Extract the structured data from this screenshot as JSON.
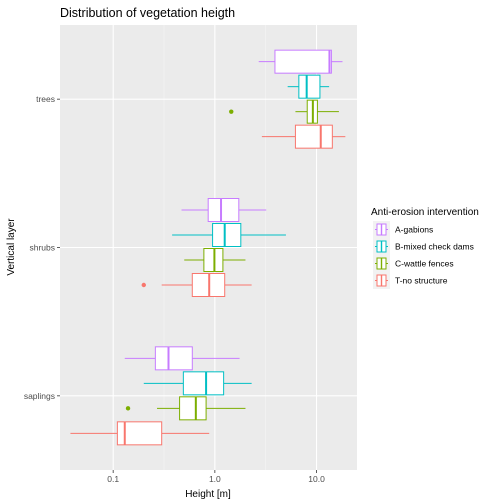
{
  "chart_data": {
    "type": "boxplot",
    "orientation": "horizontal",
    "title": "Distribution of vegetation heigth",
    "xlabel": "Height [m]",
    "ylabel": "Vertical layer",
    "x_scale": "log10",
    "xlim": [
      0.03,
      25
    ],
    "x_ticks": [
      0.1,
      1.0,
      10.0
    ],
    "x_tick_labels": [
      "0.1",
      "1.0",
      "10.0"
    ],
    "categories": [
      "trees",
      "shrubs",
      "saplings"
    ],
    "grid": true,
    "legend_position": "right",
    "legend_title": "Anti-erosion intervention",
    "series": [
      {
        "name": "A-gabions",
        "color": "#C77CFF",
        "boxes": [
          {
            "category": "trees",
            "whisker_low": 2.7,
            "q1": 3.9,
            "median": 13.4,
            "q3": 14.0,
            "whisker_high": 18.0,
            "outliers": []
          },
          {
            "category": "shrubs",
            "whisker_low": 0.47,
            "q1": 0.86,
            "median": 1.15,
            "q3": 1.72,
            "whisker_high": 3.2,
            "outliers": []
          },
          {
            "category": "saplings",
            "whisker_low": 0.13,
            "q1": 0.26,
            "median": 0.35,
            "q3": 0.6,
            "whisker_high": 1.75,
            "outliers": []
          }
        ]
      },
      {
        "name": "B-mixed check dams",
        "color": "#00BFC4",
        "boxes": [
          {
            "category": "trees",
            "whisker_low": 5.2,
            "q1": 6.7,
            "median": 8.0,
            "q3": 10.8,
            "whisker_high": 13.3,
            "outliers": []
          },
          {
            "category": "shrubs",
            "whisker_low": 0.38,
            "q1": 0.95,
            "median": 1.25,
            "q3": 1.8,
            "whisker_high": 5.0,
            "outliers": []
          },
          {
            "category": "saplings",
            "whisker_low": 0.2,
            "q1": 0.49,
            "median": 0.82,
            "q3": 1.22,
            "whisker_high": 2.3,
            "outliers": []
          }
        ]
      },
      {
        "name": "C-wattle fences",
        "color": "#7CAE00",
        "boxes": [
          {
            "category": "trees",
            "whisker_low": 6.2,
            "q1": 8.1,
            "median": 9.2,
            "q3": 10.2,
            "whisker_high": 16.6,
            "outliers": [
              1.45
            ]
          },
          {
            "category": "shrubs",
            "whisker_low": 0.5,
            "q1": 0.78,
            "median": 0.99,
            "q3": 1.2,
            "whisker_high": 2.0,
            "outliers": []
          },
          {
            "category": "saplings",
            "whisker_low": 0.27,
            "q1": 0.45,
            "median": 0.65,
            "q3": 0.82,
            "whisker_high": 2.0,
            "outliers": [
              0.14
            ]
          }
        ]
      },
      {
        "name": "T-no structure",
        "color": "#F8766D",
        "boxes": [
          {
            "category": "trees",
            "whisker_low": 2.9,
            "q1": 6.2,
            "median": 11.0,
            "q3": 14.3,
            "whisker_high": 19.2,
            "outliers": []
          },
          {
            "category": "shrubs",
            "whisker_low": 0.3,
            "q1": 0.6,
            "median": 0.88,
            "q3": 1.25,
            "whisker_high": 2.3,
            "outliers": [
              0.2
            ]
          },
          {
            "category": "saplings",
            "whisker_low": 0.038,
            "q1": 0.11,
            "median": 0.13,
            "q3": 0.3,
            "whisker_high": 0.88,
            "outliers": []
          }
        ]
      }
    ]
  }
}
